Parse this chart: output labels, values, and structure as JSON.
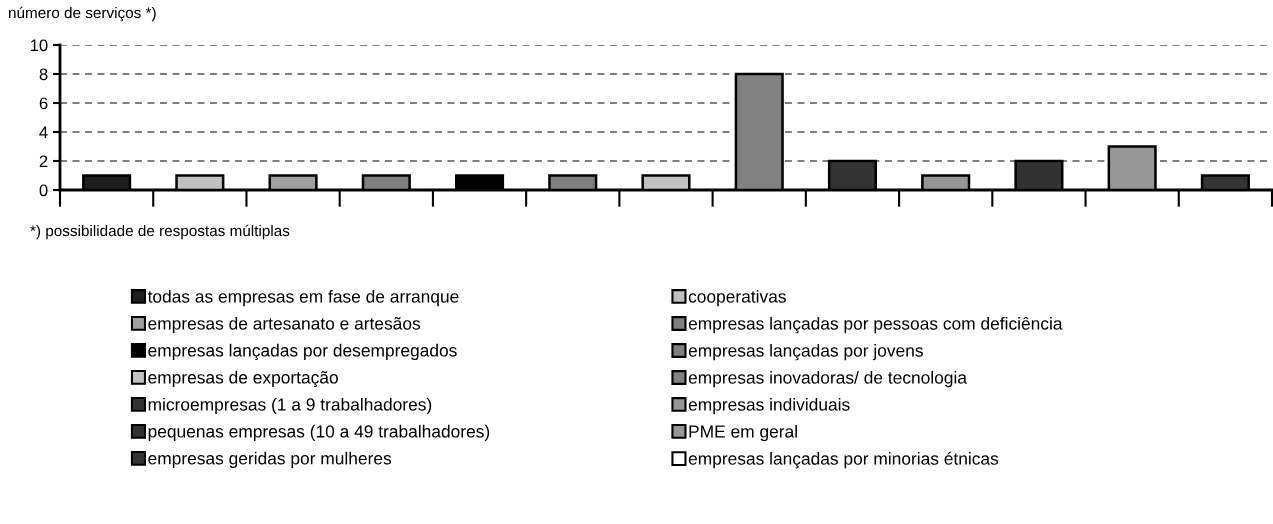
{
  "chart_data": {
    "type": "bar",
    "ylabel": "número de serviços *)",
    "categories": [
      null,
      null,
      null,
      null,
      null,
      null,
      null,
      null,
      null,
      null,
      null,
      null,
      null
    ],
    "series": [
      {
        "name": "todas as empresas em fase de arranque",
        "color": "#1e1e1e",
        "values": [
          1,
          null,
          null,
          null,
          null,
          null,
          null,
          null,
          null,
          null,
          null,
          null,
          null
        ]
      },
      {
        "name": "cooperativas",
        "color": "#c0c0c0",
        "values": [
          null,
          1,
          null,
          null,
          null,
          null,
          null,
          null,
          null,
          null,
          null,
          null,
          null
        ]
      },
      {
        "name": "empresas de artesanato e artesãos",
        "color": "#a0a0a0",
        "values": [
          null,
          null,
          1,
          null,
          null,
          null,
          null,
          null,
          null,
          null,
          null,
          null,
          null
        ]
      },
      {
        "name": "empresas lançadas por pessoas com deficiência",
        "color": "#808080",
        "values": [
          null,
          null,
          null,
          1,
          null,
          null,
          null,
          null,
          null,
          null,
          null,
          null,
          null
        ]
      },
      {
        "name": "empresas lançadas por desempregados",
        "color": "#000000",
        "values": [
          null,
          null,
          null,
          null,
          1,
          null,
          null,
          null,
          null,
          null,
          null,
          null,
          null
        ]
      },
      {
        "name": "empresas lançadas por jovens",
        "color": "#7f7f7f",
        "values": [
          null,
          null,
          null,
          null,
          null,
          1,
          null,
          null,
          null,
          null,
          null,
          null,
          null
        ]
      },
      {
        "name": "empresas de exportação",
        "color": "#c1c1c1",
        "values": [
          null,
          null,
          null,
          null,
          null,
          null,
          1,
          null,
          null,
          null,
          null,
          null,
          null
        ]
      },
      {
        "name": "empresas inovadoras/ de tecnologia",
        "color": "#818181",
        "values": [
          null,
          null,
          null,
          null,
          null,
          null,
          null,
          8,
          null,
          null,
          null,
          null,
          null
        ]
      },
      {
        "name": "microempresas (1 a 9 trabalhadores)",
        "color": "#333333",
        "values": [
          null,
          null,
          null,
          null,
          null,
          null,
          null,
          null,
          2,
          null,
          null,
          null,
          null
        ]
      },
      {
        "name": "empresas individuais",
        "color": "#969696",
        "values": [
          null,
          null,
          null,
          null,
          null,
          null,
          null,
          null,
          null,
          1,
          null,
          null,
          null
        ]
      },
      {
        "name": "pequenas empresas (10 a 49 trabalhadores)",
        "color": "#323232",
        "values": [
          null,
          null,
          null,
          null,
          null,
          null,
          null,
          null,
          null,
          null,
          2,
          null,
          null
        ]
      },
      {
        "name": "PME em geral",
        "color": "#979797",
        "values": [
          null,
          null,
          null,
          null,
          null,
          null,
          null,
          null,
          null,
          null,
          null,
          3,
          null
        ]
      },
      {
        "name": "empresas geridas por mulheres",
        "color": "#343434",
        "values": [
          null,
          null,
          null,
          null,
          null,
          null,
          null,
          null,
          null,
          null,
          null,
          null,
          1
        ]
      },
      {
        "name": "empresas lançadas por minorias étnicas",
        "color": "#ffffff",
        "values": [
          null,
          null,
          null,
          null,
          null,
          null,
          null,
          null,
          null,
          null,
          null,
          null,
          null
        ]
      }
    ],
    "ylim": [
      0,
      10
    ],
    "yticks": [
      0,
      2,
      4,
      6,
      8,
      10
    ],
    "grid": "y",
    "legend": "bottom",
    "annotations": [
      "*) possibilidade de respostas múltiplas"
    ]
  }
}
